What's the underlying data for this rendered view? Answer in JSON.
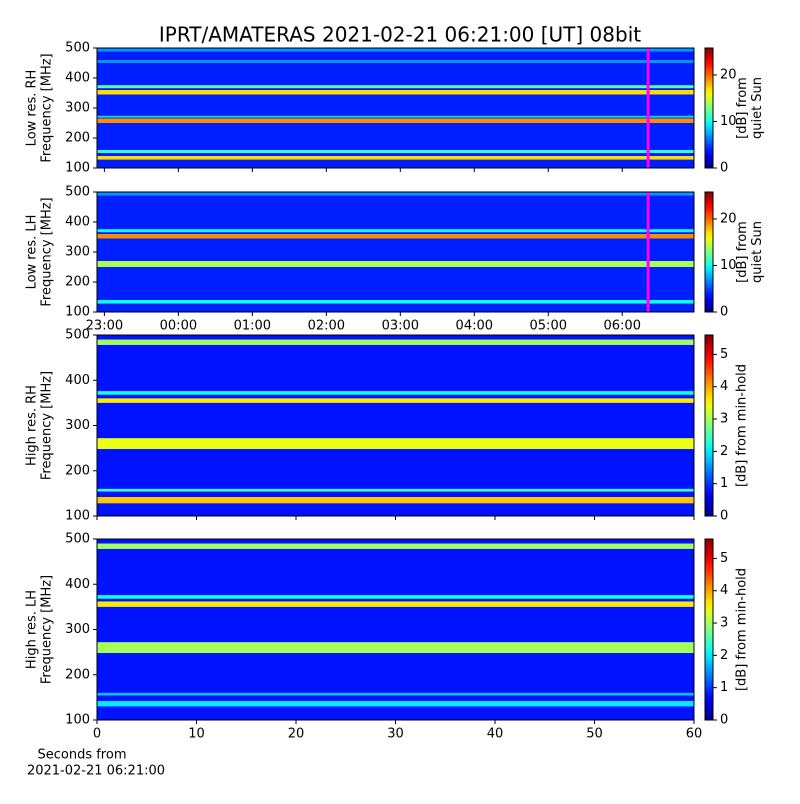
{
  "chart_data": [
    {
      "type": "heatmap",
      "title": "IPRT/AMATERAS 2021-02-21 06:21:00 [UT]   08bit",
      "ylabel": [
        "Low res. RH",
        "Frequency [MHz]"
      ],
      "ylim": [
        100,
        500
      ],
      "yticks": [
        100,
        200,
        300,
        400,
        500
      ],
      "clim": [
        0,
        25.8
      ],
      "cticks": [
        0,
        10,
        20
      ],
      "clabel": [
        "[dB] from",
        "quiet Sun"
      ],
      "background": 4,
      "marker_x": 6.35,
      "marker_color": "#ff00ff",
      "bands": [
        {
          "freq": [
            128,
            140
          ],
          "level": 17
        },
        {
          "freq": [
            150,
            160
          ],
          "level": 11
        },
        {
          "freq": [
            250,
            265
          ],
          "level": 19
        },
        {
          "freq": [
            268,
            274
          ],
          "level": 9
        },
        {
          "freq": [
            345,
            360
          ],
          "level": 17
        },
        {
          "freq": [
            366,
            376
          ],
          "level": 12
        },
        {
          "freq": [
            450,
            460
          ],
          "level": 7
        },
        {
          "freq": [
            488,
            498
          ],
          "level": 7
        }
      ]
    },
    {
      "type": "heatmap",
      "ylabel": [
        "Low res. LH",
        "Frequency [MHz]"
      ],
      "ylim": [
        100,
        500
      ],
      "yticks": [
        100,
        200,
        300,
        400,
        500
      ],
      "xlim": [
        -1.1,
        6.97
      ],
      "xticks": [
        {
          "value": -1,
          "label": "23:00"
        },
        {
          "value": 0,
          "label": "00:00"
        },
        {
          "value": 1,
          "label": "01:00"
        },
        {
          "value": 2,
          "label": "02:00"
        },
        {
          "value": 3,
          "label": "03:00"
        },
        {
          "value": 4,
          "label": "04:00"
        },
        {
          "value": 5,
          "label": "05:00"
        },
        {
          "value": 6,
          "label": "06:00"
        }
      ],
      "clim": [
        0,
        25.8
      ],
      "cticks": [
        0,
        10,
        20
      ],
      "clabel": [
        "[dB] from",
        "quiet Sun"
      ],
      "background": 4,
      "marker_x": 6.35,
      "marker_color": "#ff00ff",
      "bands": [
        {
          "freq": [
            128,
            140
          ],
          "level": 10
        },
        {
          "freq": [
            250,
            270
          ],
          "level": 14
        },
        {
          "freq": [
            345,
            360
          ],
          "level": 19
        },
        {
          "freq": [
            366,
            376
          ],
          "level": 10
        },
        {
          "freq": [
            488,
            498
          ],
          "level": 7
        }
      ]
    },
    {
      "type": "heatmap",
      "ylabel": [
        "High res. RH",
        "Frequency [MHz]"
      ],
      "ylim": [
        100,
        500
      ],
      "yticks": [
        100,
        200,
        300,
        400,
        500
      ],
      "clim": [
        0,
        5.6
      ],
      "cticks": [
        0,
        1,
        2,
        3,
        4,
        5
      ],
      "clabel": [
        "[dB] from min-hold"
      ],
      "background": 0.8,
      "bands": [
        {
          "freq": [
            128,
            142
          ],
          "level": 3.8
        },
        {
          "freq": [
            154,
            160
          ],
          "level": 2.4
        },
        {
          "freq": [
            248,
            272
          ],
          "level": 3.4
        },
        {
          "freq": [
            350,
            360
          ],
          "level": 3.6
        },
        {
          "freq": [
            368,
            376
          ],
          "level": 2.2
        },
        {
          "freq": [
            478,
            490
          ],
          "level": 3
        }
      ]
    },
    {
      "type": "heatmap",
      "ylabel": [
        "High res. LH",
        "Frequency [MHz]"
      ],
      "ylim": [
        100,
        500
      ],
      "yticks": [
        100,
        200,
        300,
        400,
        500
      ],
      "xlim": [
        0,
        60
      ],
      "xticks": [
        0,
        10,
        20,
        30,
        40,
        50,
        60
      ],
      "xlabel": [
        "Seconds from",
        "2021-02-21 06:21:00"
      ],
      "clim": [
        0,
        5.6
      ],
      "cticks": [
        0,
        1,
        2,
        3,
        4,
        5
      ],
      "clabel": [
        "[dB] from min-hold"
      ],
      "background": 0.8,
      "bands": [
        {
          "freq": [
            130,
            142
          ],
          "level": 2
        },
        {
          "freq": [
            154,
            160
          ],
          "level": 1.8
        },
        {
          "freq": [
            248,
            272
          ],
          "level": 3
        },
        {
          "freq": [
            350,
            362
          ],
          "level": 3.6
        },
        {
          "freq": [
            368,
            376
          ],
          "level": 2.2
        },
        {
          "freq": [
            478,
            490
          ],
          "level": 3
        }
      ]
    }
  ]
}
